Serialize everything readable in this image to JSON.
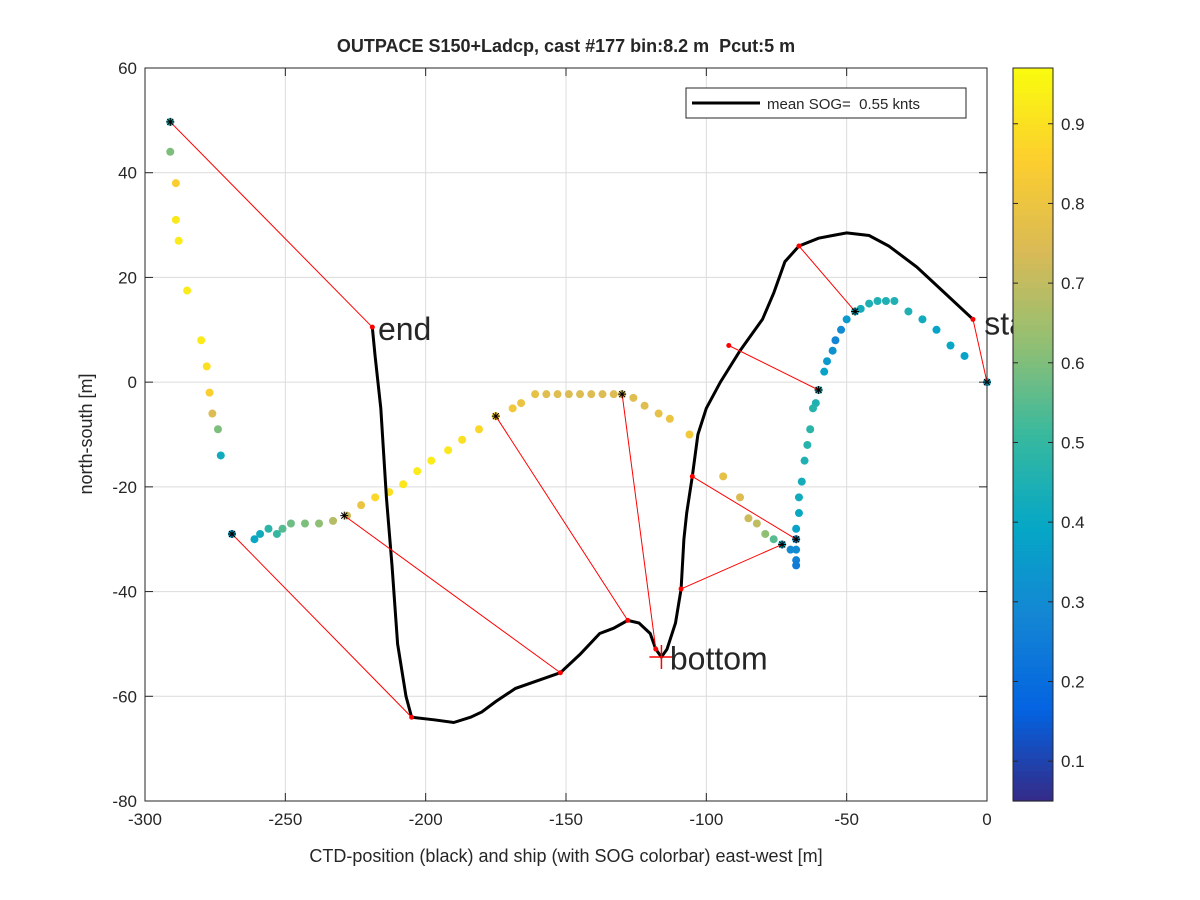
{
  "chart_data": {
    "type": "scatter",
    "title": "OUTPACE S150+Ladcp, cast #177 bin:8.2 m  Pcut:5 m",
    "xlabel": "CTD-position (black) and ship (with SOG colorbar) east-west [m]",
    "ylabel": "north-south [m]",
    "xlim": [
      -300,
      0
    ],
    "xticks": [
      -300,
      -250,
      -200,
      -150,
      -100,
      -50,
      0
    ],
    "ylim": [
      -80,
      60
    ],
    "yticks": [
      -80,
      -60,
      -40,
      -20,
      0,
      20,
      40,
      60
    ],
    "grid": true,
    "colormap": "parula",
    "clim": [
      0.05,
      0.97
    ],
    "cticks": [
      0.1,
      0.2,
      0.3,
      0.4,
      0.5,
      0.6,
      0.7,
      0.8,
      0.9
    ],
    "legend": {
      "label": "mean SOG=  0.55 knts",
      "corner": "upper right",
      "color": "#000000"
    },
    "ship": {
      "x": [
        0,
        -8,
        -13,
        -18,
        -23,
        -28,
        -33,
        -36,
        -39,
        -42,
        -45,
        -47,
        -50,
        -52,
        -54,
        -55,
        -57,
        -58,
        -60,
        -61,
        -62,
        -63,
        -64,
        -65,
        -66,
        -67,
        -67,
        -68,
        -68,
        -68,
        -68,
        -68,
        -70,
        -73,
        -76,
        -79,
        -82,
        -85,
        -88,
        -94,
        -106,
        -113,
        -117,
        -122,
        -126,
        -130,
        -133,
        -137,
        -141,
        -145,
        -149,
        -153,
        -157,
        -161,
        -166,
        -169,
        -175,
        -181,
        -187,
        -192,
        -198,
        -203,
        -208,
        -213,
        -218,
        -223,
        -228,
        -233,
        -238,
        -243,
        -248,
        -251,
        -253,
        -256,
        -259,
        -261,
        -269,
        -273,
        -274,
        -276,
        -277,
        -278,
        -280,
        -285,
        -288,
        -289,
        -289,
        -291,
        -291
      ],
      "y": [
        0,
        5,
        7,
        10,
        12,
        13.5,
        15.5,
        15.5,
        15.5,
        15,
        14,
        13.5,
        12,
        10,
        8,
        6,
        4,
        2,
        -1.5,
        -4,
        -5,
        -9,
        -12,
        -15,
        -19,
        -22,
        -25,
        -28,
        -30,
        -32,
        -34,
        -35,
        -32,
        -31,
        -30,
        -29,
        -27,
        -26,
        -22,
        -18,
        -10,
        -7,
        -6,
        -4.5,
        -3,
        -2.3,
        -2.3,
        -2.3,
        -2.3,
        -2.3,
        -2.3,
        -2.3,
        -2.3,
        -2.3,
        -4,
        -5,
        -6.5,
        -9,
        -11,
        -13,
        -15,
        -17,
        -19.5,
        -21,
        -22,
        -23.5,
        -25.5,
        -26.5,
        -27,
        -27,
        -27,
        -28,
        -29,
        -28,
        -29,
        -30,
        -29,
        -14,
        -9,
        -6,
        -2,
        3,
        8,
        17.5,
        27,
        31,
        38,
        44,
        49.7
      ],
      "sog": [
        0.4,
        0.38,
        0.4,
        0.38,
        0.42,
        0.45,
        0.45,
        0.45,
        0.45,
        0.45,
        0.43,
        0.42,
        0.35,
        0.3,
        0.28,
        0.32,
        0.35,
        0.38,
        0.42,
        0.45,
        0.47,
        0.48,
        0.47,
        0.45,
        0.43,
        0.42,
        0.4,
        0.38,
        0.33,
        0.3,
        0.27,
        0.25,
        0.3,
        0.4,
        0.55,
        0.62,
        0.7,
        0.72,
        0.75,
        0.78,
        0.82,
        0.8,
        0.78,
        0.76,
        0.76,
        0.75,
        0.75,
        0.75,
        0.75,
        0.75,
        0.75,
        0.76,
        0.76,
        0.78,
        0.8,
        0.82,
        0.85,
        0.88,
        0.9,
        0.92,
        0.93,
        0.93,
        0.92,
        0.9,
        0.88,
        0.8,
        0.72,
        0.68,
        0.62,
        0.6,
        0.58,
        0.55,
        0.5,
        0.48,
        0.42,
        0.4,
        0.38,
        0.42,
        0.6,
        0.75,
        0.85,
        0.9,
        0.93,
        0.93,
        0.93,
        0.92,
        0.85,
        0.6,
        0.45
      ]
    },
    "ctd": {
      "x": [
        -5,
        -15,
        -25,
        -35,
        -42,
        -50,
        -55,
        -60,
        -67,
        -72,
        -76,
        -80,
        -88,
        -95,
        -100,
        -103,
        -105,
        -107,
        -108,
        -109,
        -111,
        -114,
        -116,
        -118,
        -120,
        -124,
        -128,
        -133,
        -138,
        -145,
        -152,
        -160,
        -168,
        -175,
        -180,
        -184,
        -190,
        -197,
        -205,
        -207,
        -210,
        -212,
        -214,
        -216,
        -218,
        -219
      ],
      "y": [
        12,
        17,
        22,
        26,
        28,
        28.5,
        28,
        27.5,
        26,
        23,
        17,
        12,
        6,
        0,
        -5,
        -10,
        -18,
        -25,
        -30,
        -39.5,
        -46,
        -51,
        -52.5,
        -51,
        -48,
        -46,
        -45.5,
        -47,
        -48,
        -52,
        -55.5,
        -57,
        -58.5,
        -61,
        -63,
        -64,
        -65,
        -64.5,
        -64,
        -60,
        -50,
        -35,
        -22,
        -5,
        5,
        10.5
      ]
    },
    "connections": [
      {
        "x": [
          0,
          -5
        ],
        "y": [
          0,
          12
        ]
      },
      {
        "x": [
          -47,
          -67
        ],
        "y": [
          13.5,
          26
        ]
      },
      {
        "x": [
          -60,
          -92
        ],
        "y": [
          -1.5,
          7
        ]
      },
      {
        "x": [
          -68,
          -105
        ],
        "y": [
          -30,
          -18
        ]
      },
      {
        "x": [
          -73,
          -109
        ],
        "y": [
          -31,
          -39.5
        ]
      },
      {
        "x": [
          -130,
          -118
        ],
        "y": [
          -2.3,
          -51
        ]
      },
      {
        "x": [
          -175,
          -128
        ],
        "y": [
          -6.5,
          -45.5
        ]
      },
      {
        "x": [
          -229,
          -152
        ],
        "y": [
          -25.5,
          -55.5
        ]
      },
      {
        "x": [
          -269,
          -205
        ],
        "y": [
          -29,
          -64
        ]
      },
      {
        "x": [
          -291,
          -219
        ],
        "y": [
          49.7,
          10.5
        ]
      }
    ],
    "annotations": [
      {
        "text": "end",
        "x": -217,
        "y": 10
      },
      {
        "text": "bottom",
        "x": -113,
        "y": -53
      },
      {
        "text": "start",
        "x": -1,
        "y": 11
      }
    ],
    "bottom_marker": {
      "x": -116,
      "y": -52.5
    }
  }
}
